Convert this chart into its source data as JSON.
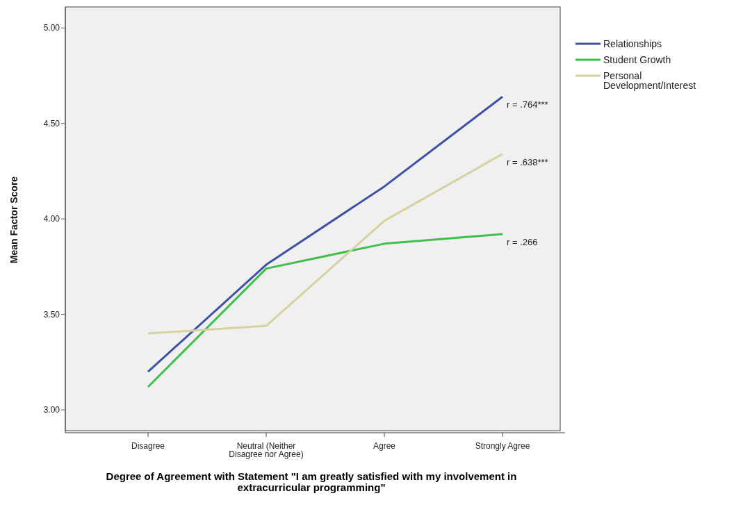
{
  "chart_data": {
    "type": "line",
    "xlabel": "Degree of Agreement with Statement \"I am greatly satisfied with my involvement in extracurricular programming\"",
    "ylabel": "Mean Factor Score",
    "categories": [
      "Disagree",
      "Neutral (Neither Disagree nor Agree)",
      "Agree",
      "Strongly Agree"
    ],
    "series": [
      {
        "name": "Relationships",
        "color": "#3f51a6",
        "values": [
          3.2,
          3.76,
          4.17,
          4.64
        ]
      },
      {
        "name": "Student Growth",
        "color": "#3fbf4a",
        "values": [
          3.12,
          3.74,
          3.87,
          3.92
        ]
      },
      {
        "name": "Personal Development/Interest",
        "color": "#d6d2a0",
        "values": [
          3.4,
          3.44,
          3.99,
          4.34
        ]
      }
    ],
    "ylim": [
      2.88,
      5.11
    ],
    "yticks": [
      {
        "value": 3,
        "label": "3.00"
      },
      {
        "value": 3.5,
        "label": "3.50"
      },
      {
        "value": 4,
        "label": "4.00"
      },
      {
        "value": 4.5,
        "label": "4.50"
      },
      {
        "value": 5,
        "label": "5.00"
      }
    ],
    "annotations": [
      {
        "text": "r = .764***",
        "x": "Strongly Agree",
        "y": 4.64
      },
      {
        "text": "r = .638***",
        "x": "Strongly Agree",
        "y": 4.34
      },
      {
        "text": "r = .266",
        "x": "Strongly Agree",
        "y": 3.92
      }
    ],
    "grid": false,
    "legend": "top right",
    "marker": "none",
    "line_style": "solid"
  }
}
